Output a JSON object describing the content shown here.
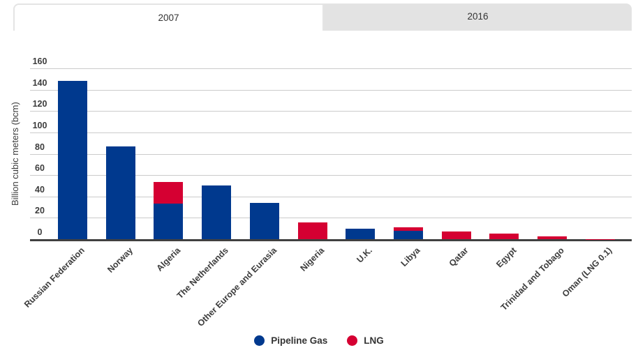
{
  "tabs": [
    {
      "label": "2007",
      "state": "active"
    },
    {
      "label": "2016",
      "state": "inactive"
    }
  ],
  "colors": {
    "pipeline": "#00398E",
    "lng": "#D50032",
    "gridline": "#CBCBCB",
    "axis_line": "#404040",
    "text": "#3C3C3C",
    "tab_inactive_bg": "#E3E3E3",
    "tab_border": "#E4E4E4"
  },
  "chart_data": {
    "type": "bar",
    "stacked": true,
    "title": "",
    "xlabel": "",
    "ylabel": "Billion cubic meters (bcm)",
    "ylim": [
      0,
      160
    ],
    "ytick_step": 20,
    "grid": true,
    "legend_position": "bottom",
    "categories": [
      "Russian Federation",
      "Norway",
      "Algeria",
      "The Netherlands",
      "Other Europe and Eurasia",
      "Nigeria",
      "U.K.",
      "Libya",
      "Qatar",
      "Egypt",
      "Trinidad and Tobago",
      "Oman (LNG 0.1)"
    ],
    "series": [
      {
        "name": "Pipeline Gas",
        "color_key": "pipeline",
        "values": [
          148,
          87,
          33,
          50,
          34,
          0,
          10,
          8,
          0,
          0,
          0,
          0
        ]
      },
      {
        "name": "LNG",
        "color_key": "lng",
        "values": [
          0,
          0,
          20.5,
          0,
          0,
          15.5,
          0,
          3,
          7,
          5.5,
          2.7,
          0.1
        ]
      }
    ]
  }
}
